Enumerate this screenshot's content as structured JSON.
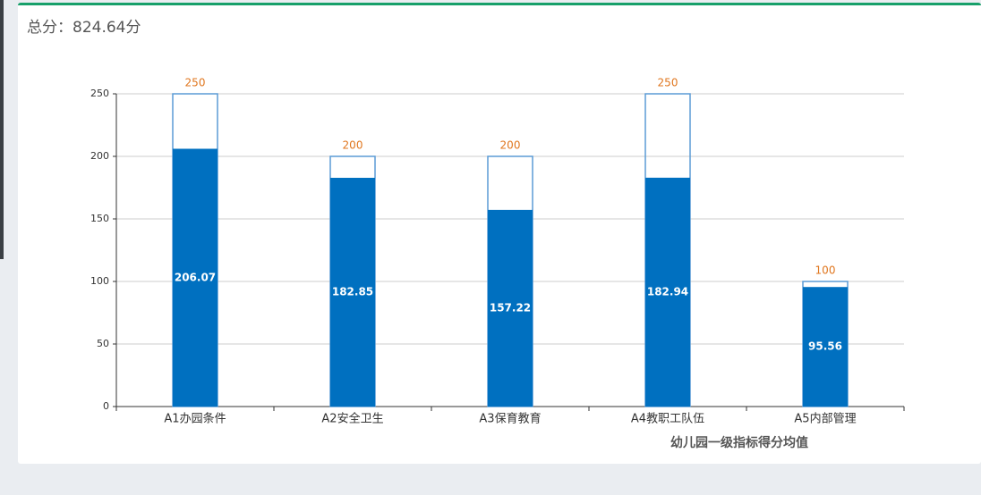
{
  "header": {
    "title": "总分：824.64分"
  },
  "chart_data": {
    "type": "bar",
    "x_label": "幼儿园一级指标得分均值",
    "categories": [
      "A1办园条件",
      "A2安全卫生",
      "A3保育教育",
      "A4教职工队伍",
      "A5内部管理"
    ],
    "series": [
      {
        "color": "#5b9bd5",
        "outline": true,
        "label_color": "#e0761e",
        "label_position": "top",
        "values": [
          250,
          200,
          200,
          250,
          100
        ]
      },
      {
        "color": "#0070c0",
        "outline": false,
        "label_color": "#ffffff",
        "label_position": "inside",
        "values": [
          206.07,
          182.85,
          157.22,
          182.94,
          95.56
        ]
      }
    ],
    "ylim": [
      0,
      250
    ],
    "yticks": [
      0,
      50,
      100,
      150,
      200,
      250
    ],
    "grid": true
  }
}
